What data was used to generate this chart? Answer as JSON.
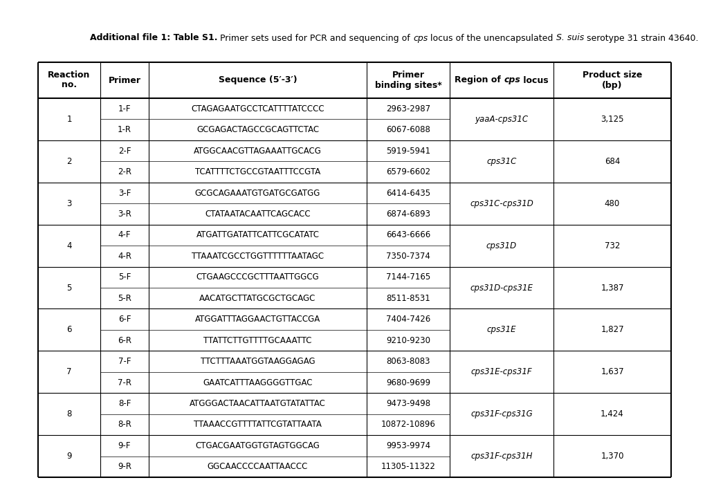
{
  "title_bold": "Additional file 1: Table S1.",
  "title_normal1": " Primer sets used for PCR and sequencing of ",
  "title_italic1": "cps",
  "title_normal2": " locus of the unencapsulated ",
  "title_italic2": "S. suis",
  "title_normal3": " serotype 31 strain 43640.",
  "rows": [
    {
      "reaction": "1",
      "primers": [
        "1-F",
        "1-R"
      ],
      "sequences": [
        "CTAGAGAATGCCTCATTTTATCCCC",
        "GCGAGACTAGCCGCAGTTCTAC"
      ],
      "binding": [
        "2963-2987",
        "6067-6088"
      ],
      "region": "yaaA-cps31C",
      "product": "3,125"
    },
    {
      "reaction": "2",
      "primers": [
        "2-F",
        "2-R"
      ],
      "sequences": [
        "ATGGCAACGTTAGAAATTGCACG",
        "TCATTTTCTGCCGTAATTTCCGTA"
      ],
      "binding": [
        "5919-5941",
        "6579-6602"
      ],
      "region": "cps31C",
      "product": "684"
    },
    {
      "reaction": "3",
      "primers": [
        "3-F",
        "3-R"
      ],
      "sequences": [
        "GCGCAGAAATGTGATGCGATGG",
        "CTATAATACAATTCAGCACC"
      ],
      "binding": [
        "6414-6435",
        "6874-6893"
      ],
      "region": "cps31C-cps31D",
      "product": "480"
    },
    {
      "reaction": "4",
      "primers": [
        "4-F",
        "4-R"
      ],
      "sequences": [
        "ATGATTGATATTCATTCGCATATC",
        "TTAAATCGCCTGGTTTTTTAATAGC"
      ],
      "binding": [
        "6643-6666",
        "7350-7374"
      ],
      "region": "cps31D",
      "product": "732"
    },
    {
      "reaction": "5",
      "primers": [
        "5-F",
        "5-R"
      ],
      "sequences": [
        "CTGAAGCCCGCTTTAATTGGCG",
        "AACATGCTTATGCGCTGCAGC"
      ],
      "binding": [
        "7144-7165",
        "8511-8531"
      ],
      "region": "cps31D-cps31E",
      "product": "1,387"
    },
    {
      "reaction": "6",
      "primers": [
        "6-F",
        "6-R"
      ],
      "sequences": [
        "ATGGATTTAGGAACTGTTACCGA",
        "TTATTCTTGTTTTGCAAATTC"
      ],
      "binding": [
        "7404-7426",
        "9210-9230"
      ],
      "region": "cps31E",
      "product": "1,827"
    },
    {
      "reaction": "7",
      "primers": [
        "7-F",
        "7-R"
      ],
      "sequences": [
        "TTCTTTAAATGGTAAGGAGAG",
        "GAATCATTTAAGGGGTTGAC"
      ],
      "binding": [
        "8063-8083",
        "9680-9699"
      ],
      "region": "cps31E-cps31F",
      "product": "1,637"
    },
    {
      "reaction": "8",
      "primers": [
        "8-F",
        "8-R"
      ],
      "sequences": [
        "ATGGGACTAACATTAATGTATATTAC",
        "TTAAACCGTTTTATTCGTATTAATA"
      ],
      "binding": [
        "9473-9498",
        "10872-10896"
      ],
      "region": "cps31F-cps31G",
      "product": "1,424"
    },
    {
      "reaction": "9",
      "primers": [
        "9-F",
        "9-R"
      ],
      "sequences": [
        "CTGACGAATGGTGTAGTGGCAG",
        "GGCAACCCCAATTAACCC"
      ],
      "binding": [
        "9953-9974",
        "11305-11322"
      ],
      "region": "cps31F-cps31H",
      "product": "1,370"
    }
  ],
  "bg_color": "#ffffff",
  "text_color": "#000000",
  "line_color": "#000000",
  "header_fontsize": 9,
  "body_fontsize": 8.5,
  "title_fontsize": 9,
  "fig_width": 10.2,
  "fig_height": 7.2,
  "dpi": 100
}
